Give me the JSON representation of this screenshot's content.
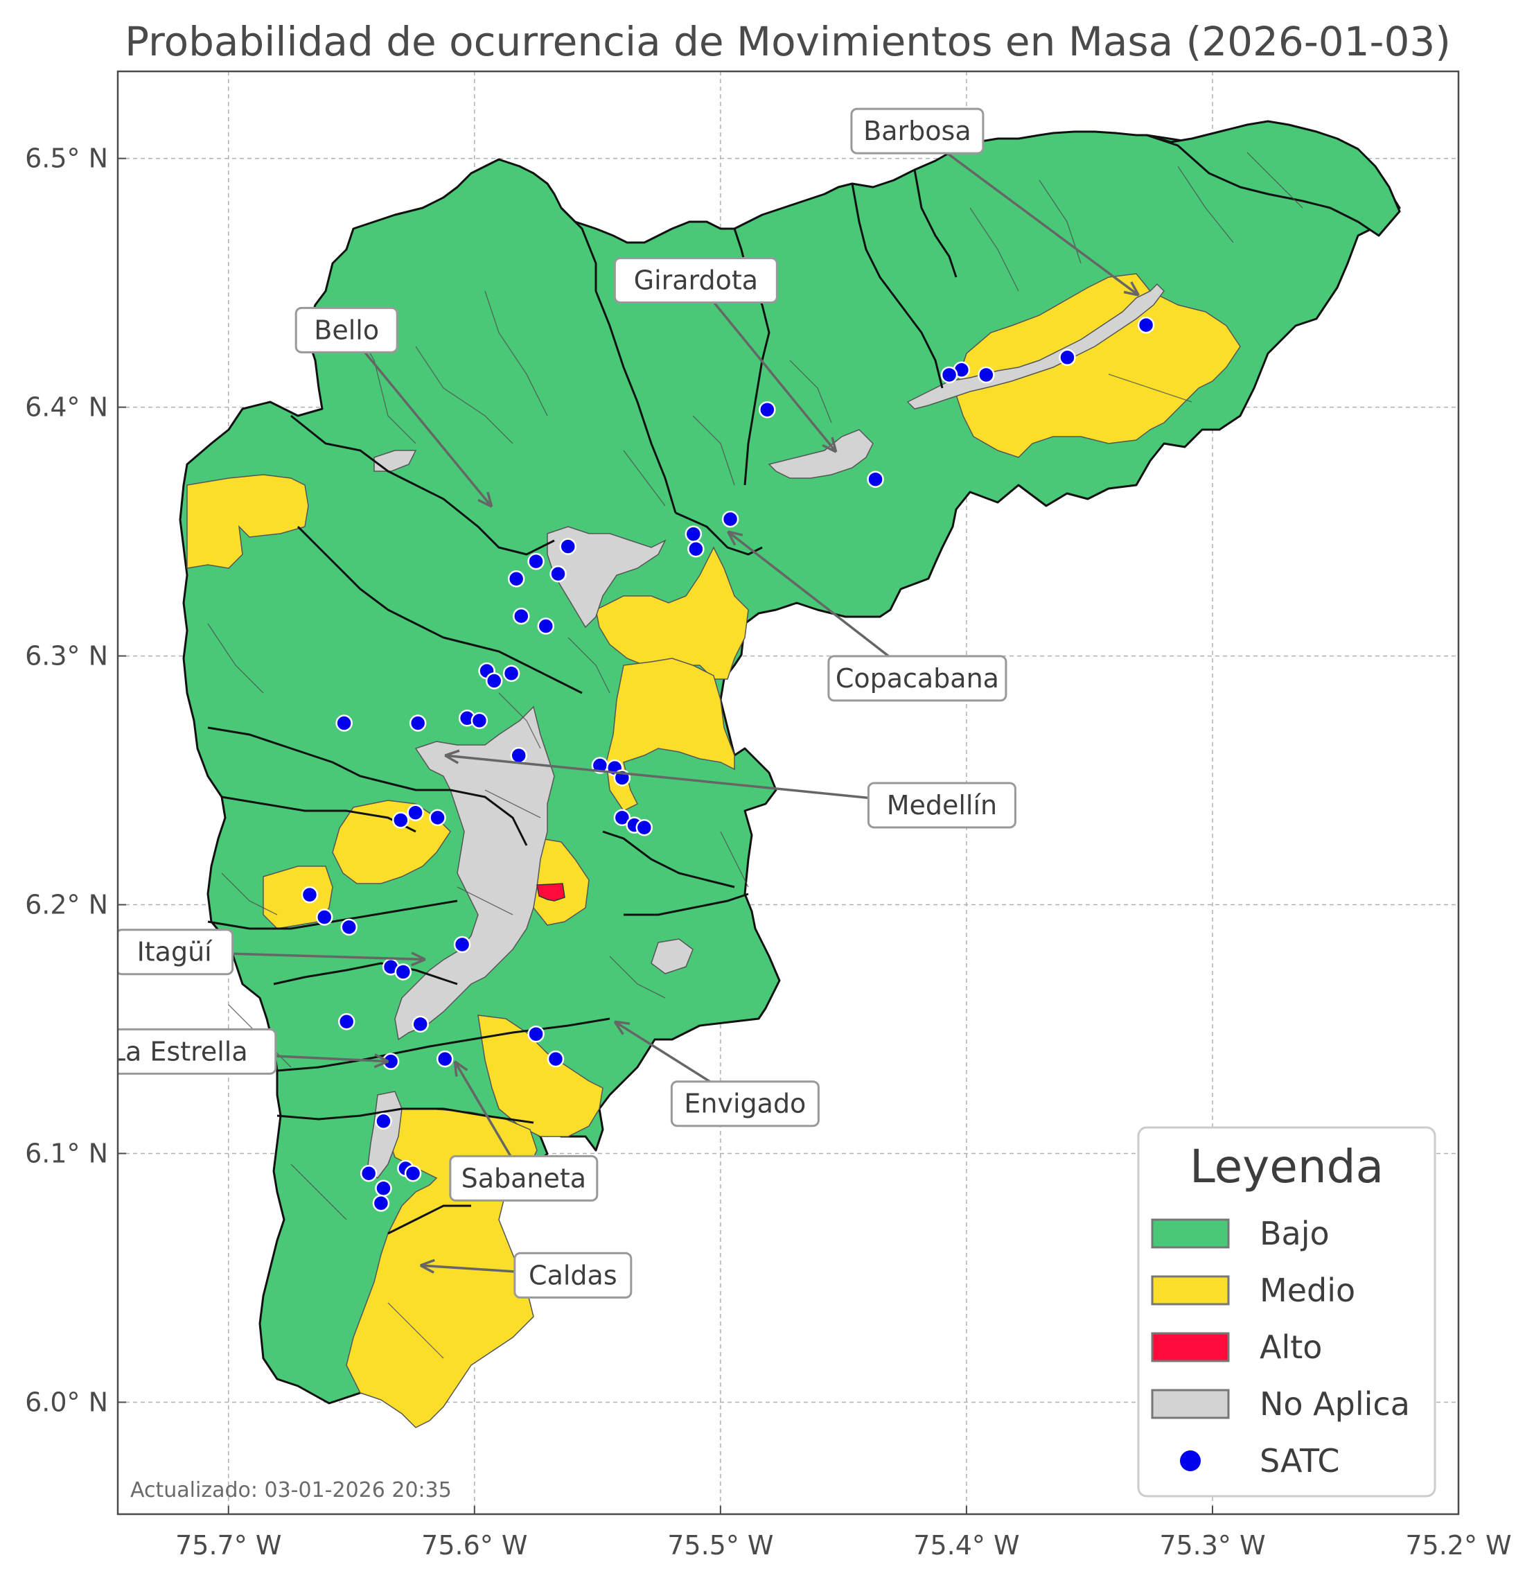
{
  "map": {
    "title": "Probabilidad de ocurrencia de Movimientos en Masa (2026-01-03)",
    "updated": "Actualizado: 03-01-2026 20:35",
    "lon_ticks": [
      {
        "value": -75.7,
        "label": "75.7° W"
      },
      {
        "value": -75.6,
        "label": "75.6° W"
      },
      {
        "value": -75.5,
        "label": "75.5° W"
      },
      {
        "value": -75.4,
        "label": "75.4° W"
      },
      {
        "value": -75.3,
        "label": "75.3° W"
      },
      {
        "value": -75.2,
        "label": "75.2° W"
      }
    ],
    "lat_ticks": [
      {
        "value": 6.5,
        "label": "6.5° N"
      },
      {
        "value": 6.4,
        "label": "6.4° N"
      },
      {
        "value": 6.3,
        "label": "6.3° N"
      },
      {
        "value": 6.2,
        "label": "6.2° N"
      },
      {
        "value": 6.1,
        "label": "6.1° N"
      },
      {
        "value": 6.0,
        "label": "6.0° N"
      }
    ],
    "lon_range": [
      -75.745,
      -75.2
    ],
    "lat_range": [
      5.955,
      6.535
    ],
    "colors": {
      "bajo": "#49c977",
      "medio": "#fbde2a",
      "alto": "#ff0a3a",
      "no_aplica": "#d3d3d3",
      "satc": "#0000ee"
    },
    "municipalities": [
      {
        "label": "Barbosa",
        "label_lon": -75.42,
        "label_lat": 6.511,
        "arrow_lon": -75.33,
        "arrow_lat": 6.445
      },
      {
        "label": "Girardota",
        "label_lon": -75.51,
        "label_lat": 6.451,
        "arrow_lon": -75.453,
        "arrow_lat": 6.382
      },
      {
        "label": "Bello",
        "label_lon": -75.652,
        "label_lat": 6.431,
        "arrow_lon": -75.593,
        "arrow_lat": 6.36
      },
      {
        "label": "Copacabana",
        "label_lon": -75.42,
        "label_lat": 6.291,
        "arrow_lon": -75.497,
        "arrow_lat": 6.35
      },
      {
        "label": "Medellín",
        "label_lon": -75.41,
        "label_lat": 6.24,
        "arrow_lon": -75.612,
        "arrow_lat": 6.26
      },
      {
        "label": "Itagüí",
        "label_lon": -75.722,
        "label_lat": 6.181,
        "arrow_lon": -75.62,
        "arrow_lat": 6.178
      },
      {
        "label": "La Estrella",
        "label_lon": -75.72,
        "label_lat": 6.141,
        "arrow_lon": -75.635,
        "arrow_lat": 6.137
      },
      {
        "label": "Envigado",
        "label_lon": -75.49,
        "label_lat": 6.12,
        "arrow_lon": -75.543,
        "arrow_lat": 6.153
      },
      {
        "label": "Sabaneta",
        "label_lon": -75.58,
        "label_lat": 6.09,
        "arrow_lon": -75.608,
        "arrow_lat": 6.137
      },
      {
        "label": "Caldas",
        "label_lon": -75.56,
        "label_lat": 6.051,
        "arrow_lon": -75.622,
        "arrow_lat": 6.055
      }
    ],
    "satc_stations": [
      [
        -75.327,
        6.433
      ],
      [
        -75.359,
        6.42
      ],
      [
        -75.392,
        6.413
      ],
      [
        -75.402,
        6.415
      ],
      [
        -75.407,
        6.413
      ],
      [
        -75.481,
        6.399
      ],
      [
        -75.437,
        6.371
      ],
      [
        -75.496,
        6.355
      ],
      [
        -75.511,
        6.349
      ],
      [
        -75.51,
        6.343
      ],
      [
        -75.562,
        6.344
      ],
      [
        -75.566,
        6.333
      ],
      [
        -75.575,
        6.338
      ],
      [
        -75.583,
        6.331
      ],
      [
        -75.581,
        6.316
      ],
      [
        -75.571,
        6.312
      ],
      [
        -75.585,
        6.293
      ],
      [
        -75.595,
        6.294
      ],
      [
        -75.592,
        6.29
      ],
      [
        -75.653,
        6.273
      ],
      [
        -75.623,
        6.273
      ],
      [
        -75.603,
        6.275
      ],
      [
        -75.598,
        6.274
      ],
      [
        -75.582,
        6.26
      ],
      [
        -75.549,
        6.256
      ],
      [
        -75.543,
        6.255
      ],
      [
        -75.54,
        6.251
      ],
      [
        -75.54,
        6.235
      ],
      [
        -75.535,
        6.232
      ],
      [
        -75.531,
        6.231
      ],
      [
        -75.624,
        6.237
      ],
      [
        -75.63,
        6.234
      ],
      [
        -75.615,
        6.235
      ],
      [
        -75.667,
        6.204
      ],
      [
        -75.661,
        6.195
      ],
      [
        -75.651,
        6.191
      ],
      [
        -75.605,
        6.184
      ],
      [
        -75.634,
        6.175
      ],
      [
        -75.629,
        6.173
      ],
      [
        -75.652,
        6.153
      ],
      [
        -75.622,
        6.152
      ],
      [
        -75.634,
        6.137
      ],
      [
        -75.612,
        6.138
      ],
      [
        -75.575,
        6.148
      ],
      [
        -75.567,
        6.138
      ],
      [
        -75.637,
        6.113
      ],
      [
        -75.643,
        6.092
      ],
      [
        -75.628,
        6.094
      ],
      [
        -75.625,
        6.092
      ],
      [
        -75.637,
        6.086
      ],
      [
        -75.638,
        6.08
      ]
    ]
  },
  "legend": {
    "title": "Leyenda",
    "items": [
      {
        "label": "Bajo",
        "kind": "patch",
        "color": "#49c977"
      },
      {
        "label": "Medio",
        "kind": "patch",
        "color": "#fbde2a"
      },
      {
        "label": "Alto",
        "kind": "patch",
        "color": "#ff0a3a"
      },
      {
        "label": "No Aplica",
        "kind": "patch",
        "color": "#d3d3d3"
      },
      {
        "label": "SATC",
        "kind": "dot",
        "color": "#0000ee"
      }
    ]
  }
}
